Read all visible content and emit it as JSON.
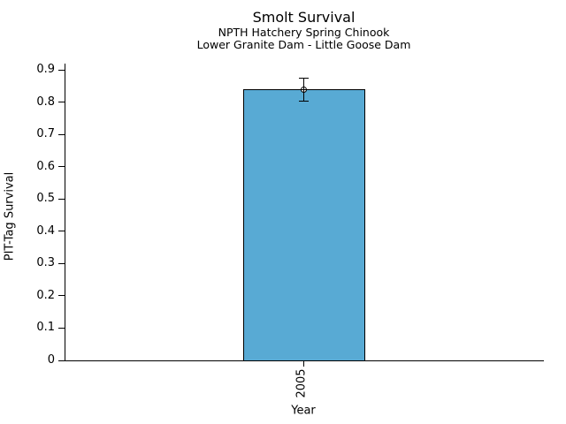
{
  "chart_data": {
    "type": "bar",
    "title": "Smolt Survival",
    "subtitle": [
      "NPTH Hatchery Spring Chinook",
      "Lower Granite Dam - Little Goose Dam"
    ],
    "xlabel": "Year",
    "ylabel": "PIT-Tag Survival",
    "categories": [
      "2005"
    ],
    "series": [
      {
        "name": "PIT-Tag Survival",
        "values": [
          0.84
        ],
        "error_low": [
          0.805
        ],
        "error_high": [
          0.875
        ]
      }
    ],
    "ylim": [
      0,
      0.92
    ],
    "yticks": [
      0,
      0.1,
      0.2,
      0.3,
      0.4,
      0.5,
      0.6,
      0.7,
      0.8,
      0.9
    ],
    "ytick_labels": [
      "0",
      "0.1",
      "0.2",
      "0.3",
      "0.4",
      "0.5",
      "0.6",
      "0.7",
      "0.8",
      "0.9"
    ],
    "grid": false,
    "legend": "none",
    "colors": {
      "bar_fill": "#58AAD4",
      "bar_edge": "#000000",
      "error_bar": "#000000",
      "marker_face": "#FFFFFF",
      "marker_edge": "#000000",
      "text": "#000000",
      "background": "#FFFFFF"
    }
  }
}
